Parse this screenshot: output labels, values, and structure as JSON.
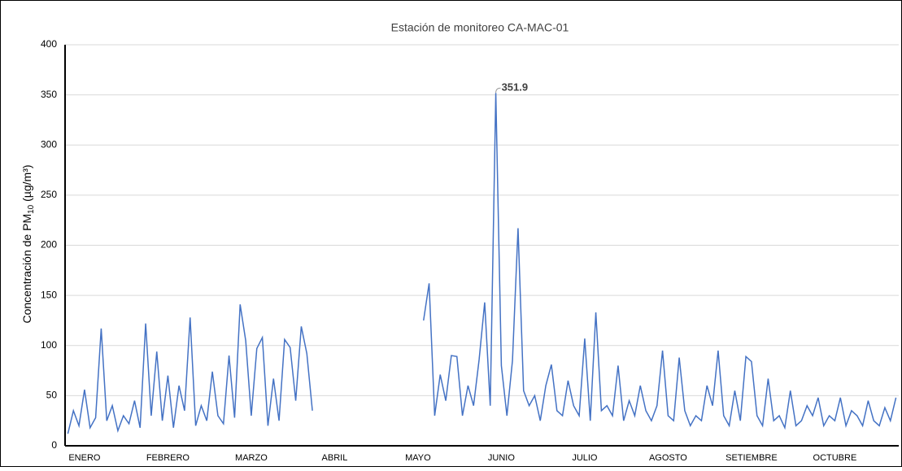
{
  "chart_data": {
    "type": "line",
    "title": "Estación de monitoreo CA-MAC-01",
    "y_label": [
      "Concentración de PM",
      "10",
      " (µg/m³)"
    ],
    "categories": [
      null,
      null,
      null,
      "ENERO",
      null,
      null,
      null,
      null,
      null,
      null,
      null,
      null,
      null,
      null,
      null,
      null,
      null,
      null,
      "FEBRERO",
      null,
      null,
      null,
      null,
      null,
      null,
      null,
      null,
      null,
      null,
      null,
      null,
      null,
      null,
      "MARZO",
      null,
      null,
      null,
      null,
      null,
      null,
      null,
      null,
      null,
      null,
      null,
      null,
      null,
      null,
      "ABRIL",
      null,
      null,
      null,
      null,
      null,
      null,
      null,
      null,
      null,
      null,
      null,
      null,
      null,
      null,
      "MAYO",
      null,
      null,
      null,
      null,
      null,
      null,
      null,
      null,
      null,
      null,
      null,
      null,
      null,
      null,
      "JUNIO",
      null,
      null,
      null,
      null,
      null,
      null,
      null,
      null,
      null,
      null,
      null,
      null,
      null,
      null,
      "JULIO",
      null,
      null,
      null,
      null,
      null,
      null,
      null,
      null,
      null,
      null,
      null,
      null,
      null,
      null,
      "AGOSTO",
      null,
      null,
      null,
      null,
      null,
      null,
      null,
      null,
      null,
      null,
      null,
      null,
      null,
      null,
      "SETIEMBRE",
      null,
      null,
      null,
      null,
      null,
      null,
      null,
      null,
      null,
      null,
      null,
      null,
      null,
      null,
      "OCTUBRE",
      null,
      null,
      null,
      null,
      null,
      null,
      null,
      null,
      null,
      null,
      null
    ],
    "values": [
      12,
      35,
      20,
      56,
      18,
      28,
      117,
      25,
      40,
      15,
      30,
      22,
      45,
      18,
      122,
      30,
      94,
      25,
      70,
      18,
      60,
      35,
      128,
      20,
      40,
      25,
      74,
      30,
      22,
      90,
      28,
      141,
      105,
      30,
      97,
      108,
      20,
      67,
      25,
      106,
      98,
      45,
      119,
      92,
      35,
      null,
      null,
      null,
      null,
      null,
      null,
      null,
      null,
      null,
      null,
      null,
      null,
      null,
      null,
      null,
      null,
      null,
      null,
      null,
      125,
      162,
      30,
      71,
      45,
      90,
      89,
      30,
      60,
      40,
      86,
      143,
      40,
      351.9,
      80,
      30,
      85,
      217,
      55,
      40,
      50,
      25,
      60,
      81,
      35,
      30,
      65,
      40,
      30,
      107,
      25,
      133,
      35,
      40,
      30,
      80,
      25,
      45,
      30,
      60,
      35,
      25,
      40,
      95,
      30,
      25,
      88,
      35,
      20,
      30,
      25,
      60,
      40,
      95,
      30,
      20,
      55,
      25,
      89,
      84,
      30,
      20,
      67,
      25,
      30,
      18,
      55,
      20,
      25,
      40,
      30,
      48,
      20,
      30,
      25,
      48,
      20,
      35,
      30,
      20,
      45,
      25,
      20,
      38,
      25,
      48
    ],
    "color": "#4472c4",
    "ylim": [
      0,
      400
    ],
    "yticks": [
      0,
      50,
      100,
      150,
      200,
      250,
      300,
      350,
      400
    ],
    "grid": true
  }
}
